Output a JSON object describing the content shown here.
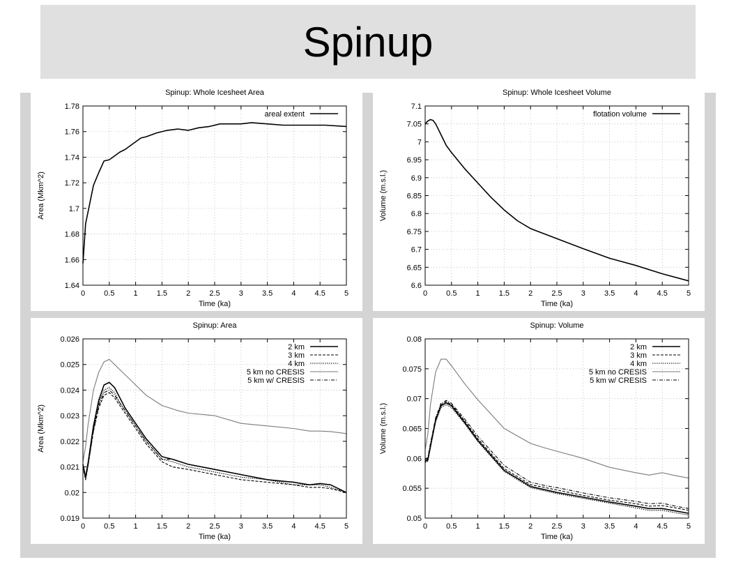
{
  "page": {
    "title": "Spinup"
  },
  "chart_data": [
    {
      "type": "line",
      "title": "Spinup: Whole Icesheet Area",
      "xlabel": "Time (ka)",
      "ylabel": "Area (Mkm^2)",
      "xlim": [
        0,
        5
      ],
      "ylim": [
        1.64,
        1.78
      ],
      "xticks": [
        "0",
        "0.5",
        "1",
        "1.5",
        "2",
        "2.5",
        "3",
        "3.5",
        "4",
        "4.5",
        "5"
      ],
      "yticks": [
        "1.64",
        "1.66",
        "1.68",
        "1.7",
        "1.72",
        "1.74",
        "1.76",
        "1.78"
      ],
      "grid": true,
      "legend": "top-right",
      "series": [
        {
          "name": "areal extent",
          "color": "#000000",
          "dash": "",
          "width": 1.6,
          "x": [
            0,
            0.05,
            0.1,
            0.2,
            0.3,
            0.4,
            0.5,
            0.6,
            0.7,
            0.8,
            0.9,
            1.0,
            1.1,
            1.2,
            1.4,
            1.6,
            1.8,
            2.0,
            2.2,
            2.4,
            2.6,
            2.8,
            3.0,
            3.2,
            3.5,
            3.8,
            4.0,
            4.3,
            4.6,
            5.0
          ],
          "y": [
            1.657,
            1.688,
            1.698,
            1.718,
            1.728,
            1.737,
            1.738,
            1.741,
            1.744,
            1.746,
            1.749,
            1.752,
            1.755,
            1.756,
            1.759,
            1.761,
            1.762,
            1.761,
            1.763,
            1.764,
            1.766,
            1.766,
            1.766,
            1.767,
            1.766,
            1.765,
            1.765,
            1.765,
            1.765,
            1.764
          ]
        }
      ]
    },
    {
      "type": "line",
      "title": "Spinup: Whole Icesheet Volume",
      "xlabel": "Time (ka)",
      "ylabel": "Volume (m.s.l.)",
      "xlim": [
        0,
        5
      ],
      "ylim": [
        6.6,
        7.1
      ],
      "xticks": [
        "0",
        "0.5",
        "1",
        "1.5",
        "2",
        "2.5",
        "3",
        "3.5",
        "4",
        "4.5",
        "5"
      ],
      "yticks": [
        "6.6",
        "6.65",
        "6.7",
        "6.75",
        "6.8",
        "6.85",
        "6.9",
        "6.95",
        "7",
        "7.05",
        "7.1"
      ],
      "grid": true,
      "legend": "top-right",
      "series": [
        {
          "name": "flotation volume",
          "color": "#000000",
          "dash": "",
          "width": 1.6,
          "x": [
            0,
            0.05,
            0.1,
            0.15,
            0.2,
            0.3,
            0.4,
            0.5,
            0.75,
            1.0,
            1.25,
            1.5,
            1.75,
            2.0,
            2.5,
            3.0,
            3.5,
            4.0,
            4.5,
            5.0
          ],
          "y": [
            7.05,
            7.058,
            7.062,
            7.06,
            7.05,
            7.02,
            6.99,
            6.97,
            6.925,
            6.885,
            6.845,
            6.81,
            6.78,
            6.758,
            6.73,
            6.702,
            6.675,
            6.655,
            6.632,
            6.612
          ]
        }
      ]
    },
    {
      "type": "line",
      "title": "Spinup: Area",
      "xlabel": "Time (ka)",
      "ylabel": "Area (Mkm^2)",
      "xlim": [
        0,
        5
      ],
      "ylim": [
        0.019,
        0.026
      ],
      "xticks": [
        "0",
        "0.5",
        "1",
        "1.5",
        "2",
        "2.5",
        "3",
        "3.5",
        "4",
        "4.5",
        "5"
      ],
      "yticks": [
        "0.019",
        "0.02",
        "0.021",
        "0.022",
        "0.023",
        "0.024",
        "0.025",
        "0.026"
      ],
      "grid": true,
      "legend": "top-right",
      "series": [
        {
          "name": "2 km",
          "color": "#000000",
          "dash": "",
          "width": 1.6,
          "x": [
            0,
            0.05,
            0.1,
            0.2,
            0.3,
            0.4,
            0.5,
            0.6,
            0.7,
            0.8,
            1.0,
            1.2,
            1.5,
            1.7,
            2.0,
            2.5,
            3.0,
            3.5,
            4.0,
            4.3,
            4.5,
            4.7,
            5.0
          ],
          "y": [
            0.0211,
            0.0206,
            0.0212,
            0.0226,
            0.0236,
            0.0242,
            0.0243,
            0.0241,
            0.0237,
            0.0233,
            0.0227,
            0.0221,
            0.0214,
            0.0213,
            0.0211,
            0.0209,
            0.0207,
            0.0205,
            0.0204,
            0.0203,
            0.02035,
            0.0203,
            0.02
          ]
        },
        {
          "name": "3 km",
          "color": "#000000",
          "dash": "4,2",
          "width": 1.1,
          "x": [
            0,
            0.05,
            0.1,
            0.2,
            0.3,
            0.4,
            0.5,
            0.6,
            0.7,
            0.8,
            1.0,
            1.2,
            1.5,
            1.7,
            2.0,
            2.5,
            3.0,
            3.5,
            4.0,
            4.3,
            4.5,
            4.7,
            5.0
          ],
          "y": [
            0.021,
            0.0205,
            0.0211,
            0.0224,
            0.0233,
            0.0238,
            0.0239,
            0.0237,
            0.0234,
            0.0231,
            0.0225,
            0.0219,
            0.0212,
            0.021,
            0.0209,
            0.0207,
            0.0205,
            0.0204,
            0.0203,
            0.0202,
            0.0202,
            0.02015,
            0.02
          ]
        },
        {
          "name": "4 km",
          "color": "#000000",
          "dash": "1.5,1.5",
          "width": 1.1,
          "x": [
            0,
            0.05,
            0.1,
            0.2,
            0.3,
            0.4,
            0.5,
            0.6,
            0.7,
            0.8,
            1.0,
            1.2,
            1.5,
            1.7,
            2.0,
            2.5,
            3.0,
            3.5,
            4.0,
            4.3,
            4.5,
            4.7,
            5.0
          ],
          "y": [
            0.0211,
            0.0205,
            0.0211,
            0.0225,
            0.0235,
            0.024,
            0.0241,
            0.0239,
            0.0235,
            0.0232,
            0.0226,
            0.022,
            0.0213,
            0.0212,
            0.021,
            0.0208,
            0.0206,
            0.0205,
            0.0203,
            0.0203,
            0.0203,
            0.0202,
            0.02
          ]
        },
        {
          "name": "5 km no CRESIS",
          "color": "#7a7a7a",
          "dash": "",
          "width": 1.1,
          "x": [
            0,
            0.05,
            0.1,
            0.2,
            0.3,
            0.4,
            0.5,
            0.6,
            0.7,
            0.8,
            1.0,
            1.2,
            1.5,
            1.8,
            2.0,
            2.5,
            3.0,
            3.5,
            4.0,
            4.3,
            4.5,
            4.7,
            5.0
          ],
          "y": [
            0.0212,
            0.0218,
            0.0227,
            0.024,
            0.0247,
            0.0251,
            0.0252,
            0.025,
            0.0248,
            0.0246,
            0.0242,
            0.0238,
            0.0234,
            0.0232,
            0.0231,
            0.023,
            0.0227,
            0.0226,
            0.0225,
            0.0224,
            0.0224,
            0.02238,
            0.0223
          ]
        },
        {
          "name": "5 km w/ CRESIS",
          "color": "#000000",
          "dash": "5,2,1,2",
          "width": 1.1,
          "x": [
            0,
            0.05,
            0.1,
            0.2,
            0.3,
            0.4,
            0.5,
            0.6,
            0.7,
            0.8,
            1.0,
            1.2,
            1.5,
            1.7,
            2.0,
            2.5,
            3.0,
            3.5,
            4.0,
            4.3,
            4.5,
            4.7,
            5.0
          ],
          "y": [
            0.021,
            0.0206,
            0.0211,
            0.0224,
            0.0234,
            0.0239,
            0.024,
            0.0238,
            0.0235,
            0.0232,
            0.0226,
            0.022,
            0.0213,
            0.0213,
            0.0211,
            0.0209,
            0.0207,
            0.0205,
            0.0204,
            0.0203,
            0.02035,
            0.0203,
            0.02
          ]
        }
      ]
    },
    {
      "type": "line",
      "title": "Spinup: Volume",
      "xlabel": "Time (ka)",
      "ylabel": "Volume (m.s.l.)",
      "xlim": [
        0,
        5
      ],
      "ylim": [
        0.05,
        0.08
      ],
      "xticks": [
        "0",
        "0.5",
        "1",
        "1.5",
        "2",
        "2.5",
        "3",
        "3.5",
        "4",
        "4.5",
        "5"
      ],
      "yticks": [
        "0.05",
        "0.055",
        "0.06",
        "0.065",
        "0.07",
        "0.075",
        "0.08"
      ],
      "grid": true,
      "legend": "top-right",
      "series": [
        {
          "name": "2 km",
          "color": "#000000",
          "dash": "",
          "width": 1.6,
          "x": [
            0,
            0.05,
            0.1,
            0.2,
            0.3,
            0.4,
            0.5,
            0.75,
            1.0,
            1.5,
            2.0,
            2.5,
            3.0,
            3.5,
            4.0,
            4.25,
            4.5,
            4.75,
            5.0
          ],
          "y": [
            0.0595,
            0.0597,
            0.062,
            0.0664,
            0.0688,
            0.0693,
            0.0688,
            0.066,
            0.063,
            0.058,
            0.0553,
            0.0543,
            0.0535,
            0.0527,
            0.052,
            0.0516,
            0.0516,
            0.0512,
            0.0508
          ]
        },
        {
          "name": "3 km",
          "color": "#000000",
          "dash": "4,2",
          "width": 1.1,
          "x": [
            0,
            0.05,
            0.1,
            0.2,
            0.3,
            0.4,
            0.5,
            0.75,
            1.0,
            1.5,
            2.0,
            2.5,
            3.0,
            3.5,
            4.0,
            4.25,
            4.5,
            4.75,
            5.0
          ],
          "y": [
            0.0597,
            0.0599,
            0.0622,
            0.0666,
            0.069,
            0.0695,
            0.069,
            0.0663,
            0.0633,
            0.0583,
            0.0556,
            0.0547,
            0.0538,
            0.053,
            0.0524,
            0.052,
            0.0521,
            0.0517,
            0.0513
          ]
        },
        {
          "name": "4 km",
          "color": "#000000",
          "dash": "1.5,1.5",
          "width": 1.1,
          "x": [
            0,
            0.05,
            0.1,
            0.2,
            0.3,
            0.4,
            0.5,
            0.75,
            1.0,
            1.5,
            2.0,
            2.5,
            3.0,
            3.5,
            4.0,
            4.25,
            4.5,
            4.75,
            5.0
          ],
          "y": [
            0.0593,
            0.0595,
            0.0618,
            0.0661,
            0.0685,
            0.069,
            0.0685,
            0.0658,
            0.0628,
            0.0578,
            0.0551,
            0.0541,
            0.0533,
            0.0525,
            0.0517,
            0.0513,
            0.0513,
            0.0509,
            0.0505
          ]
        },
        {
          "name": "5 km no CRESIS",
          "color": "#7a7a7a",
          "dash": "",
          "width": 1.1,
          "x": [
            0,
            0.05,
            0.1,
            0.2,
            0.3,
            0.4,
            0.5,
            0.75,
            1.0,
            1.5,
            2.0,
            2.25,
            2.5,
            3.0,
            3.5,
            4.0,
            4.25,
            4.5,
            4.75,
            5.0
          ],
          "y": [
            0.0615,
            0.064,
            0.069,
            0.0745,
            0.0766,
            0.0766,
            0.0755,
            0.0725,
            0.0698,
            0.065,
            0.0625,
            0.0618,
            0.0612,
            0.06,
            0.0585,
            0.0576,
            0.0572,
            0.0576,
            0.0571,
            0.0567
          ]
        },
        {
          "name": "5 km w/ CRESIS",
          "color": "#000000",
          "dash": "5,2,1,2",
          "width": 1.1,
          "x": [
            0,
            0.05,
            0.1,
            0.2,
            0.3,
            0.4,
            0.5,
            0.75,
            1.0,
            1.5,
            2.0,
            2.25,
            2.5,
            3.0,
            3.5,
            4.0,
            4.25,
            4.5,
            4.75,
            5.0
          ],
          "y": [
            0.0599,
            0.0601,
            0.0625,
            0.0668,
            0.0692,
            0.0697,
            0.0692,
            0.0666,
            0.0637,
            0.0588,
            0.056,
            0.0555,
            0.0551,
            0.0542,
            0.0534,
            0.0528,
            0.0524,
            0.0525,
            0.052,
            0.0516
          ]
        }
      ]
    }
  ]
}
